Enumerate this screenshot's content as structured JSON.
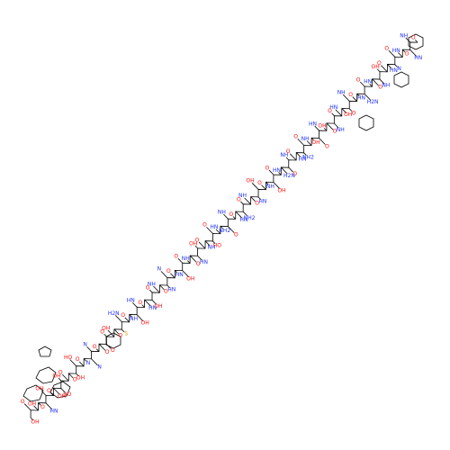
{
  "atoms": [
    "O",
    "NH",
    "HN",
    "O",
    "HN",
    "O",
    "N",
    "HN",
    "O",
    "OH",
    "NH",
    "O",
    "HN",
    "O",
    "H2N",
    "HN",
    "O",
    "NH",
    "O",
    "OH",
    "HN",
    "O",
    "NH",
    "O",
    "OH",
    "HN",
    "O",
    "OH",
    "NH",
    "O",
    "NH2",
    "HN",
    "O",
    "NH",
    "O",
    "H2N",
    "HN",
    "O",
    "OH",
    "NH",
    "O",
    "OH",
    "HN",
    "O",
    "NH",
    "O",
    "NH2",
    "HN",
    "O",
    "NH",
    "O",
    "NH2",
    "HN",
    "O",
    "HO",
    "NH",
    "O",
    "OH",
    "HN",
    "O",
    "NH",
    "O",
    "OH",
    "HN",
    "O",
    "N",
    "HN",
    "O",
    "NH",
    "O",
    "OH",
    "HN",
    "O",
    "HN",
    "OH",
    "NH",
    "O",
    "H2N",
    "S",
    "O",
    "OH",
    "O",
    "O",
    "O",
    "O",
    "N",
    "N",
    "N",
    "O",
    "HO",
    "OH",
    "O",
    "O",
    "OH",
    "HO",
    "OH",
    "O",
    "OH",
    "HN",
    "O",
    "OH",
    "O",
    "OH"
  ]
}
